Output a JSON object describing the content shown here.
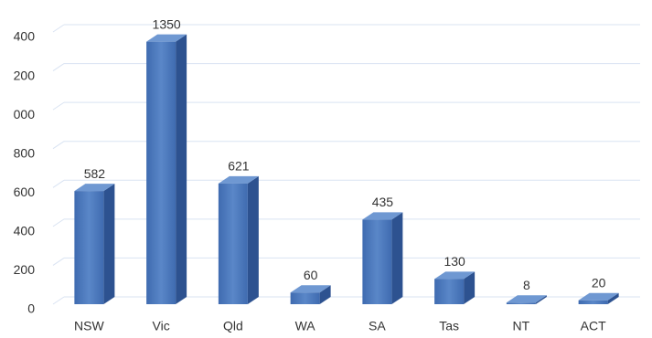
{
  "chart_data": {
    "type": "bar3d",
    "categories": [
      "NSW",
      "Vic",
      "Qld",
      "WA",
      "SA",
      "Tas",
      "NT",
      "ACT"
    ],
    "values": [
      582,
      1350,
      621,
      60,
      435,
      130,
      8,
      20
    ],
    "color": "#4a78bc",
    "ylim": [
      0,
      1400
    ],
    "yticks": [
      0,
      200,
      400,
      600,
      800,
      {
        "value": 1000,
        "label": "000"
      },
      {
        "value": 1200,
        "label": "200"
      },
      {
        "value": 1400,
        "label": "400"
      }
    ],
    "grid": true
  }
}
